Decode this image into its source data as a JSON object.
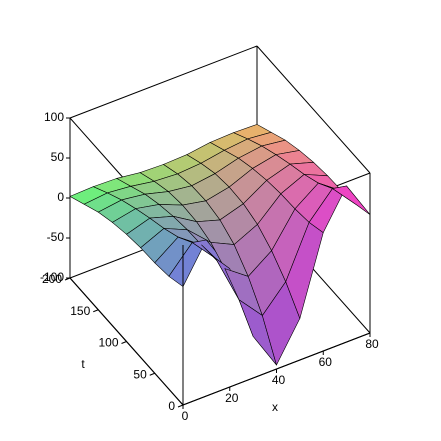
{
  "chart_data": {
    "type": "surface",
    "x": [
      0,
      10,
      20,
      30,
      40,
      50,
      60,
      70,
      80
    ],
    "t": [
      0,
      25,
      50,
      75,
      100,
      125,
      150,
      175,
      200
    ],
    "z": [
      [
        48,
        95,
        48,
        -48,
        -95,
        -48,
        48,
        95,
        48
      ],
      [
        41,
        72,
        41,
        -22,
        -53,
        -22,
        41,
        72,
        41
      ],
      [
        38,
        59,
        38,
        -3,
        -24,
        -3,
        38,
        59,
        38
      ],
      [
        37,
        50,
        37,
        10,
        -4,
        10,
        37,
        50,
        37
      ],
      [
        34,
        43,
        34,
        16,
        7,
        16,
        34,
        43,
        34
      ],
      [
        29,
        35,
        29,
        17,
        11,
        17,
        29,
        35,
        29
      ],
      [
        22,
        26,
        22,
        14,
        10,
        14,
        22,
        26,
        22
      ],
      [
        12,
        15,
        12,
        7,
        5,
        7,
        12,
        15,
        12
      ],
      [
        2,
        3,
        2,
        -2,
        -3,
        -2,
        2,
        3,
        2
      ]
    ],
    "xlabel": "x",
    "tlabel": "t",
    "xlim": [
      0,
      80
    ],
    "tlim": [
      0,
      200
    ],
    "zlim": [
      -100,
      100
    ],
    "xticks": [
      0,
      20,
      40,
      60,
      80
    ],
    "tticks": [
      0,
      50,
      100,
      150,
      200
    ],
    "zticks": [
      -100,
      -50,
      0,
      50,
      100
    ]
  }
}
